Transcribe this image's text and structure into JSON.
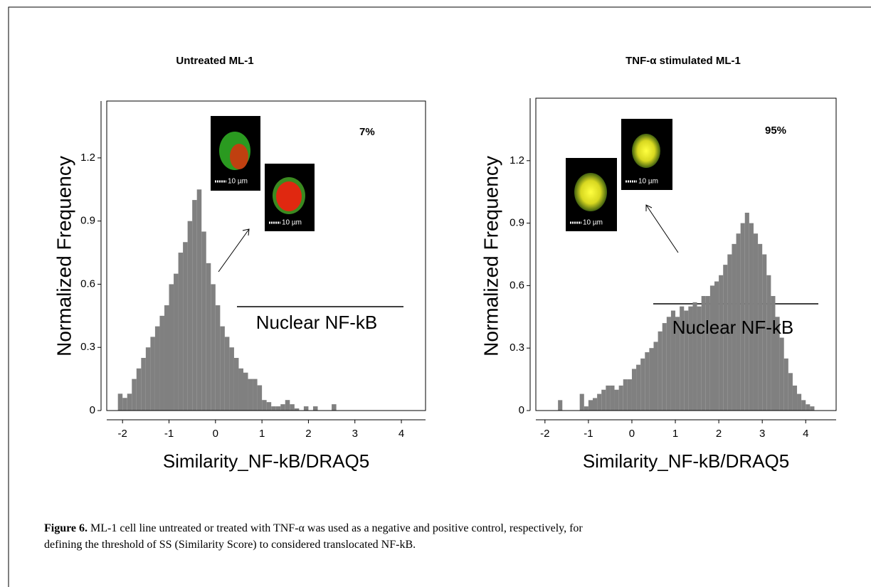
{
  "chart_data": [
    {
      "type": "histogram",
      "title": "Untreated  ML-1",
      "xlabel": "Similarity_NF-kB/DRAQ5",
      "ylabel": "Normalized Frequency",
      "color": "#808080",
      "bins": [
        -2.1,
        -2.0,
        -1.9,
        -1.8,
        -1.7,
        -1.6,
        -1.5,
        -1.4,
        -1.3,
        -1.2,
        -1.1,
        -1.0,
        -0.9,
        -0.8,
        -0.7,
        -0.6,
        -0.5,
        -0.4,
        -0.3,
        -0.2,
        -0.1,
        0.0,
        0.1,
        0.2,
        0.3,
        0.4,
        0.5,
        0.6,
        0.7,
        0.8,
        0.9,
        1.0,
        1.1,
        1.2,
        1.3,
        1.4,
        1.5,
        1.6,
        1.7,
        1.8,
        1.9,
        2.0,
        2.1,
        2.2,
        2.3,
        2.4,
        2.5,
        2.6
      ],
      "values": [
        0.08,
        0.06,
        0.08,
        0.15,
        0.2,
        0.25,
        0.3,
        0.35,
        0.4,
        0.45,
        0.5,
        0.6,
        0.65,
        0.75,
        0.8,
        0.9,
        1.0,
        1.05,
        0.85,
        0.7,
        0.6,
        0.5,
        0.4,
        0.35,
        0.3,
        0.25,
        0.2,
        0.18,
        0.15,
        0.15,
        0.12,
        0.05,
        0.04,
        0.02,
        0.02,
        0.03,
        0.05,
        0.03,
        0.01,
        0,
        0.02,
        0,
        0.02,
        0,
        0,
        0,
        0.03
      ],
      "xlim": [
        -2.34,
        4.52
      ],
      "ylim": [
        0,
        1.47
      ],
      "xticks": [
        -2,
        -1,
        0,
        1,
        2,
        3,
        4
      ],
      "yticks": [
        0,
        0.3,
        0.6,
        0.9,
        1.2
      ],
      "annotations": [
        "7%",
        "Nuclear NF-kB"
      ]
    },
    {
      "type": "histogram",
      "title": "TNF-α stimulated ML-1",
      "xlabel": "Similarity_NF-kB/DRAQ5",
      "ylabel": "Normalized Frequency",
      "color": "#808080",
      "bins": [
        -1.7,
        -1.6,
        -1.5,
        -1.4,
        -1.3,
        -1.2,
        -1.1,
        -1.0,
        -0.9,
        -0.8,
        -0.7,
        -0.6,
        -0.5,
        -0.4,
        -0.3,
        -0.2,
        -0.1,
        0.0,
        0.1,
        0.2,
        0.3,
        0.4,
        0.5,
        0.6,
        0.7,
        0.8,
        0.9,
        1.0,
        1.1,
        1.2,
        1.3,
        1.4,
        1.5,
        1.6,
        1.7,
        1.8,
        1.9,
        2.0,
        2.1,
        2.2,
        2.3,
        2.4,
        2.5,
        2.6,
        2.7,
        2.8,
        2.9,
        3.0,
        3.1,
        3.2,
        3.3,
        3.4,
        3.5,
        3.6,
        3.7,
        3.8,
        3.9,
        4.0,
        4.1,
        4.2
      ],
      "values": [
        0.05,
        0,
        0,
        0,
        0,
        0.08,
        0.02,
        0.05,
        0.06,
        0.08,
        0.1,
        0.12,
        0.12,
        0.1,
        0.12,
        0.15,
        0.15,
        0.2,
        0.22,
        0.25,
        0.28,
        0.3,
        0.33,
        0.38,
        0.42,
        0.45,
        0.48,
        0.45,
        0.5,
        0.48,
        0.5,
        0.52,
        0.5,
        0.55,
        0.55,
        0.6,
        0.62,
        0.65,
        0.7,
        0.75,
        0.8,
        0.85,
        0.9,
        0.95,
        0.9,
        0.85,
        0.8,
        0.75,
        0.65,
        0.55,
        0.45,
        0.35,
        0.25,
        0.18,
        0.12,
        0.08,
        0.05,
        0.03,
        0.02
      ],
      "xlim": [
        -2.21,
        4.7
      ],
      "ylim": [
        0,
        1.5
      ],
      "xticks": [
        -2,
        -1,
        0,
        1,
        2,
        3,
        4
      ],
      "yticks": [
        0,
        0.3,
        0.6,
        0.9,
        1.2
      ],
      "annotations": [
        "95%",
        "Nuclear NF-kB"
      ]
    }
  ],
  "scale_bar_label": "10 µm",
  "caption": {
    "label": "Figure 6.",
    "text": " ML-1 cell line untreated or treated with TNF-α was used as a negative and positive control, respectively, for defining the threshold of SS (Similarity Score) to considered translocated NF-kB."
  }
}
